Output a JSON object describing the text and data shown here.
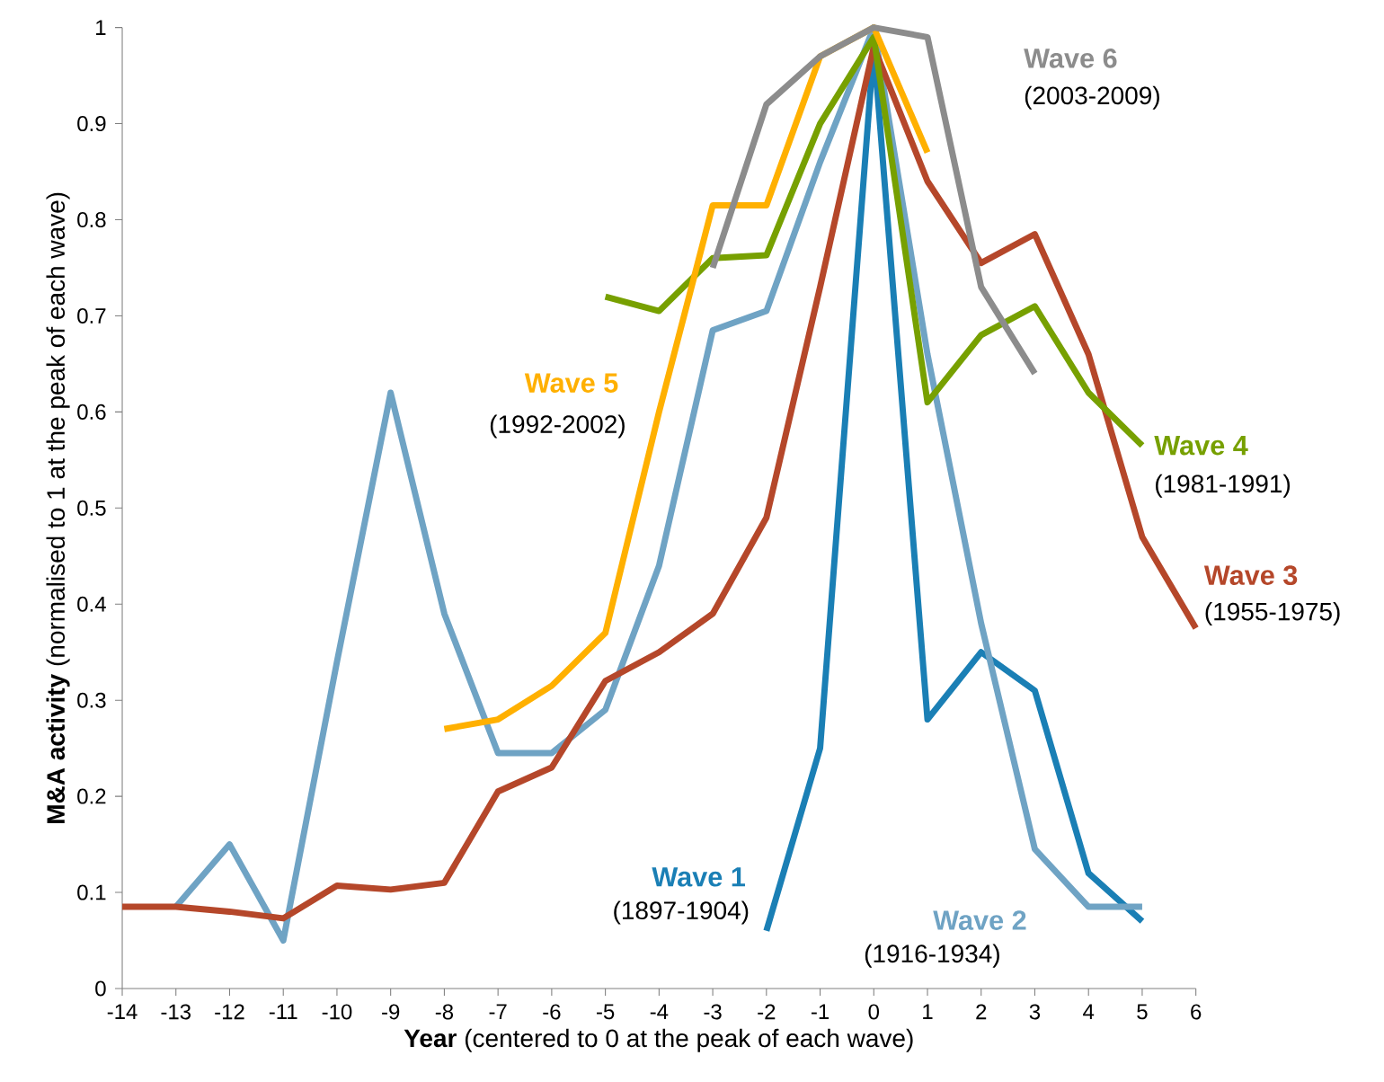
{
  "chart_data": {
    "type": "line",
    "xlabel": "**Year** (centered to 0 at the peak of each wave)",
    "ylabel": "**M&A activity** (normalised to 1 at the peak of each wave)",
    "xlim": [
      -14,
      6
    ],
    "xticks": [
      -14,
      -13,
      -12,
      -11,
      -10,
      -9,
      -8,
      -7,
      -6,
      -5,
      -4,
      -3,
      -2,
      -1,
      0,
      1,
      2,
      3,
      4,
      5,
      6
    ],
    "ylim": [
      0,
      1
    ],
    "yticks": [
      0,
      0.1,
      0.2,
      0.3,
      0.4,
      0.5,
      0.6,
      0.7,
      0.8,
      0.9,
      1
    ],
    "grid": false,
    "legend": false,
    "marker": "none",
    "line_style": "solid",
    "series": [
      {
        "name": "Wave 1",
        "color": "#1a7fb5",
        "x": [
          -2,
          -1,
          0,
          1,
          2,
          3,
          4,
          5
        ],
        "values": [
          0.06,
          0.25,
          0.98,
          0.28,
          0.35,
          0.31,
          0.12,
          0.07
        ]
      },
      {
        "name": "Wave 2",
        "color": "#6fa3c4",
        "x": [
          -13,
          -12,
          -11,
          -10,
          -9,
          -8,
          -7,
          -6,
          -5,
          -4,
          -3,
          -2,
          -1,
          0,
          1,
          2,
          3,
          4,
          5
        ],
        "values": [
          0.085,
          0.15,
          0.05,
          0.34,
          0.62,
          0.39,
          0.245,
          0.245,
          0.29,
          0.44,
          0.685,
          0.705,
          0.86,
          1.0,
          0.66,
          0.38,
          0.145,
          0.085,
          0.085
        ]
      },
      {
        "name": "Wave 3",
        "color": "#b5472a",
        "x": [
          -14,
          -13,
          -12,
          -11,
          -10,
          -9,
          -8,
          -7,
          -6,
          -5,
          -4,
          -3,
          -2,
          -1,
          0,
          1,
          2,
          3,
          4,
          5,
          6
        ],
        "values": [
          0.085,
          0.085,
          0.08,
          0.073,
          0.107,
          0.103,
          0.11,
          0.205,
          0.23,
          0.32,
          0.35,
          0.39,
          0.49,
          0.73,
          0.98,
          0.84,
          0.755,
          0.785,
          0.66,
          0.47,
          0.375
        ]
      },
      {
        "name": "Wave 4",
        "color": "#77a000",
        "x": [
          -5,
          -4,
          -3,
          -2,
          -1,
          0,
          1,
          2,
          3,
          4,
          5
        ],
        "values": [
          0.72,
          0.705,
          0.76,
          0.763,
          0.9,
          0.99,
          0.61,
          0.68,
          0.71,
          0.62,
          0.565
        ]
      },
      {
        "name": "Wave 5",
        "color": "#ffb000",
        "x": [
          -8,
          -7,
          -6,
          -5,
          -4,
          -3,
          -2,
          -1,
          0,
          1
        ],
        "values": [
          0.27,
          0.28,
          0.315,
          0.37,
          0.6,
          0.815,
          0.815,
          0.97,
          1.0,
          0.87
        ]
      },
      {
        "name": "Wave 6",
        "color": "#8c8c8c",
        "x": [
          -3,
          -2,
          -1,
          0,
          1,
          2,
          3
        ],
        "values": [
          0.75,
          0.92,
          0.97,
          1.0,
          0.99,
          0.73,
          0.64
        ]
      }
    ],
    "annotations": [
      "(1897-1904)",
      "(1916-1934)",
      "(1955-1975)",
      "(1981-1991)",
      "(1992-2002)",
      "(2003-2009)"
    ]
  }
}
